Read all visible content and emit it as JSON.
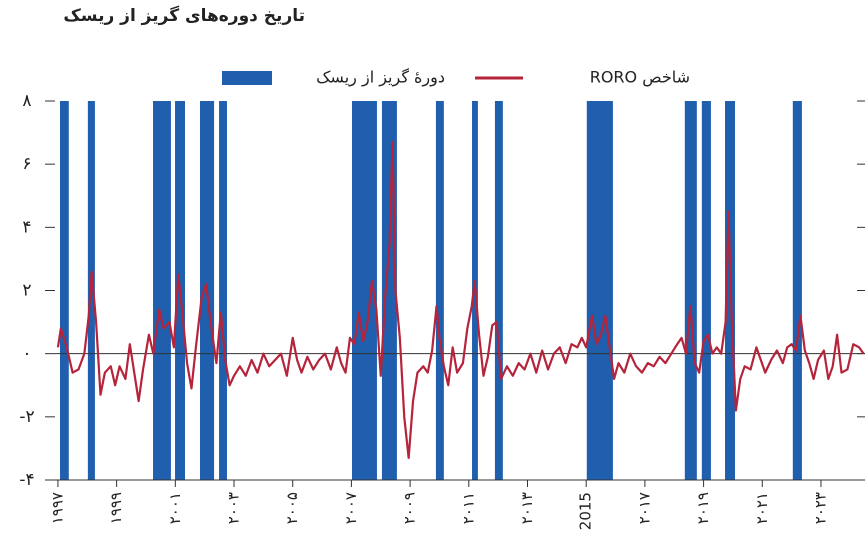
{
  "chart_data": {
    "type": "line",
    "title": "تاریخ دوره‌های گریز از ریسک",
    "series": [
      {
        "name": "دورهٔ گریز از ریسک",
        "type": "band",
        "color": "#1f5fae",
        "intervals": [
          [
            1997.07,
            1997.37
          ],
          [
            1998.02,
            1998.26
          ],
          [
            2000.24,
            2000.85
          ],
          [
            2000.99,
            2001.33
          ],
          [
            2001.84,
            2002.32
          ],
          [
            2002.49,
            2002.76
          ],
          [
            2007.02,
            2007.87
          ],
          [
            2008.04,
            2008.55
          ],
          [
            2009.88,
            2010.15
          ],
          [
            2011.11,
            2011.31
          ],
          [
            2011.89,
            2012.16
          ],
          [
            2015.02,
            2015.91
          ],
          [
            2018.36,
            2018.77
          ],
          [
            2018.94,
            2019.25
          ],
          [
            2019.73,
            2020.07
          ],
          [
            2022.04,
            2022.35
          ]
        ]
      },
      {
        "name": "شاخص RORO",
        "type": "line",
        "color": "#b5243a",
        "x": [
          1997.0,
          1997.1,
          1997.3,
          1997.5,
          1997.7,
          1997.9,
          1998.05,
          1998.15,
          1998.3,
          1998.45,
          1998.6,
          1998.8,
          1998.95,
          1999.1,
          1999.3,
          1999.45,
          1999.6,
          1999.75,
          1999.9,
          2000.1,
          2000.25,
          2000.45,
          2000.6,
          2000.8,
          2000.95,
          2001.1,
          2001.25,
          2001.4,
          2001.55,
          2001.7,
          2001.9,
          2002.05,
          2002.2,
          2002.4,
          2002.55,
          2002.7,
          2002.85,
          2003.0,
          2003.2,
          2003.4,
          2003.6,
          2003.8,
          2004.0,
          2004.2,
          2004.4,
          2004.6,
          2004.8,
          2005.0,
          2005.15,
          2005.3,
          2005.5,
          2005.7,
          2005.9,
          2006.1,
          2006.3,
          2006.5,
          2006.65,
          2006.8,
          2006.95,
          2007.1,
          2007.25,
          2007.4,
          2007.55,
          2007.7,
          2007.85,
          2008.0,
          2008.15,
          2008.3,
          2008.4,
          2008.5,
          2008.65,
          2008.8,
          2008.95,
          2009.1,
          2009.25,
          2009.45,
          2009.6,
          2009.75,
          2009.9,
          2010.0,
          2010.15,
          2010.3,
          2010.45,
          2010.6,
          2010.8,
          2010.95,
          2011.1,
          2011.2,
          2011.35,
          2011.5,
          2011.65,
          2011.8,
          2011.95,
          2012.1,
          2012.3,
          2012.5,
          2012.7,
          2012.9,
          2013.1,
          2013.3,
          2013.5,
          2013.7,
          2013.9,
          2014.1,
          2014.3,
          2014.5,
          2014.7,
          2014.85,
          2015.0,
          2015.2,
          2015.35,
          2015.5,
          2015.65,
          2015.8,
          2015.95,
          2016.1,
          2016.3,
          2016.5,
          2016.7,
          2016.9,
          2017.1,
          2017.3,
          2017.5,
          2017.7,
          2017.9,
          2018.1,
          2018.25,
          2018.4,
          2018.55,
          2018.7,
          2018.85,
          2019.0,
          2019.15,
          2019.3,
          2019.45,
          2019.6,
          2019.75,
          2019.85,
          2019.95,
          2020.1,
          2020.25,
          2020.4,
          2020.6,
          2020.8,
          2020.95,
          2021.1,
          2021.3,
          2021.5,
          2021.7,
          2021.85,
          2022.0,
          2022.15,
          2022.3,
          2022.45,
          2022.6,
          2022.75,
          2022.9,
          2023.1,
          2023.25,
          2023.4,
          2023.55,
          2023.7,
          2023.9,
          2024.1,
          2024.3,
          2024.45
        ],
        "values": [
          0.2,
          0.8,
          0.2,
          -0.6,
          -0.5,
          0.0,
          1.2,
          2.6,
          1.0,
          -1.3,
          -0.6,
          -0.4,
          -1.0,
          -0.4,
          -0.8,
          0.3,
          -0.6,
          -1.5,
          -0.5,
          0.6,
          0.0,
          1.4,
          0.8,
          1.0,
          0.2,
          2.5,
          1.2,
          -0.3,
          -1.1,
          0.2,
          1.8,
          2.2,
          1.0,
          -0.3,
          1.3,
          -0.2,
          -1.0,
          -0.7,
          -0.4,
          -0.7,
          -0.2,
          -0.6,
          0.0,
          -0.4,
          -0.2,
          0.0,
          -0.7,
          0.5,
          -0.2,
          -0.6,
          -0.1,
          -0.5,
          -0.2,
          0.0,
          -0.5,
          0.2,
          -0.3,
          -0.6,
          0.5,
          0.3,
          1.3,
          0.4,
          1.0,
          2.3,
          1.4,
          -0.7,
          1.8,
          3.5,
          6.7,
          2.0,
          0.5,
          -2.0,
          -3.3,
          -1.5,
          -0.6,
          -0.4,
          -0.6,
          0.1,
          1.5,
          0.5,
          -0.4,
          -1.0,
          0.2,
          -0.6,
          -0.3,
          0.8,
          1.5,
          2.3,
          0.6,
          -0.7,
          -0.1,
          0.9,
          1.0,
          -0.8,
          -0.4,
          -0.7,
          -0.3,
          -0.5,
          0.0,
          -0.6,
          0.1,
          -0.5,
          0.0,
          0.2,
          -0.3,
          0.3,
          0.2,
          0.5,
          0.2,
          1.2,
          0.3,
          0.6,
          1.2,
          0.2,
          -0.8,
          -0.3,
          -0.6,
          0.0,
          -0.4,
          -0.6,
          -0.3,
          -0.4,
          -0.1,
          -0.3,
          0.0,
          0.3,
          0.5,
          0.0,
          1.5,
          -0.3,
          -0.6,
          0.4,
          0.6,
          0.0,
          0.2,
          0.0,
          1.0,
          4.5,
          1.3,
          -1.8,
          -0.8,
          -0.4,
          -0.5,
          0.2,
          -0.2,
          -0.6,
          -0.2,
          0.1,
          -0.3,
          0.2,
          0.3,
          0.1,
          1.2,
          0.1,
          -0.3,
          -0.8,
          -0.2,
          0.1,
          -0.8,
          -0.4,
          0.6,
          -0.6,
          -0.5,
          0.3,
          0.2,
          0.0
        ]
      }
    ],
    "xlim": [
      1996.9,
      2024.5
    ],
    "xticks": [
      {
        "value": 1997,
        "label": "۱۹۹۷"
      },
      {
        "value": 1999,
        "label": "۱۹۹۹"
      },
      {
        "value": 2001,
        "label": "۲۰۰۱"
      },
      {
        "value": 2003,
        "label": "۲۰۰۳"
      },
      {
        "value": 2005,
        "label": "۲۰۰۵"
      },
      {
        "value": 2007,
        "label": "۲۰۰۷"
      },
      {
        "value": 2009,
        "label": "۲۰۰۹"
      },
      {
        "value": 2011,
        "label": "۲۰۱۱"
      },
      {
        "value": 2013,
        "label": "۲۰۱۳"
      },
      2015,
      {
        "value": 2017,
        "label": "۲۰۱۷"
      },
      {
        "value": 2019,
        "label": "۲۰۱۹"
      },
      {
        "value": 2021,
        "label": "۲۰۲۱"
      },
      {
        "value": 2023,
        "label": "۲۰۲۳"
      }
    ],
    "ylim": [
      -4,
      8
    ],
    "yticks": [
      {
        "value": -4,
        "label": "-۴"
      },
      {
        "value": -2,
        "label": "-۲"
      },
      {
        "value": 0,
        "label": "۰"
      },
      {
        "value": 2,
        "label": "۲"
      },
      {
        "value": 4,
        "label": "۴"
      },
      {
        "value": 6,
        "label": "۶"
      },
      {
        "value": 8,
        "label": "۸"
      }
    ]
  }
}
